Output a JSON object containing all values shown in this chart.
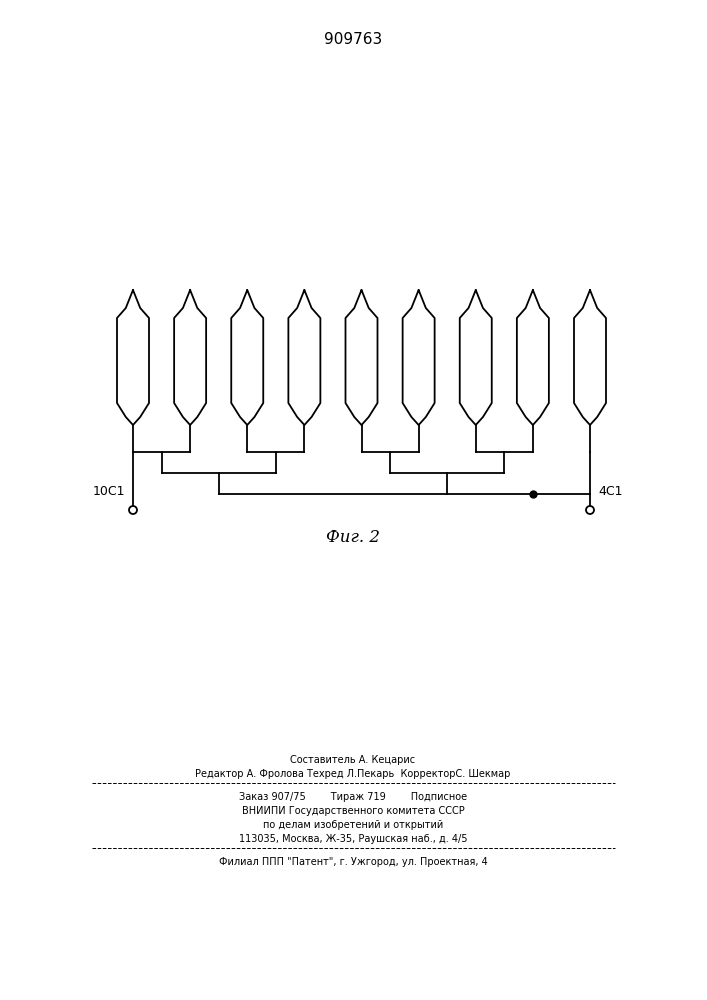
{
  "title": "909763",
  "fig_label": "Фиг. 2",
  "left_terminal_label": "10С1",
  "right_terminal_label": "4С1",
  "background_color": "#ffffff",
  "line_color": "#000000",
  "num_coils": 9,
  "bottom_text_lines": [
    "Составитель А. Кецарис",
    "Редактор А. Фролова Техред Л.Пекарь  КорректорС. Шекмар",
    "Заказ 907/75        Тираж 719        Подписное",
    "ВНИИПИ Государственного комитета СССР",
    "по делам изобретений и открытий",
    "113035, Москва, Ж-35, Раушская наб., д. 4/5",
    "Филиал ППП \"Патент\", г. Ужгород, ул. Проектная, 4"
  ]
}
